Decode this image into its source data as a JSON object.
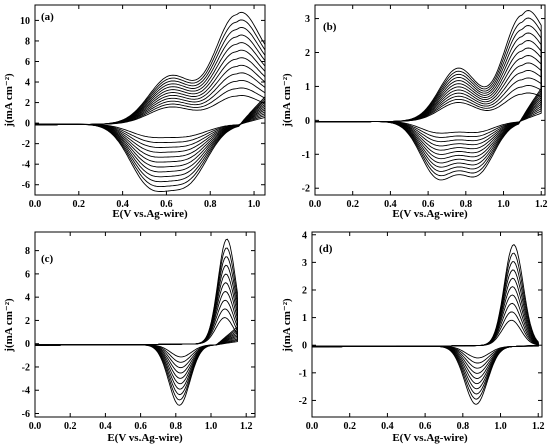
{
  "chart_data": [
    {
      "type": "line",
      "panel_label": "(a)",
      "xlabel": "E(V vs.Ag-wire)",
      "ylabel": "j(mA cm⁻²)",
      "xlim": [
        0.0,
        1.05
      ],
      "ylim": [
        -7,
        11.5
      ],
      "xticks": [
        "0.0",
        "0.2",
        "0.4",
        "0.6",
        "0.8",
        "1.0"
      ],
      "xtick_values": [
        0.0,
        0.2,
        0.4,
        0.6,
        0.8,
        1.0
      ],
      "yticks": [
        "-6",
        "-4",
        "-2",
        "0",
        "2",
        "4",
        "6",
        "8",
        "10"
      ],
      "ytick_values": [
        -6,
        -4,
        -2,
        0,
        2,
        4,
        6,
        8,
        10
      ],
      "cycle_count": 12,
      "anodic_peaks": [
        {
          "E": 0.92,
          "j": 10.5
        },
        {
          "E": 0.62,
          "j": 4.6
        }
      ],
      "cathodic_peaks": [
        {
          "E": 0.52,
          "j": -5.5
        },
        {
          "E": 0.7,
          "j": -5.2
        }
      ],
      "x_start": 0.0,
      "x_switch": 1.05
    },
    {
      "type": "line",
      "panel_label": "(b)",
      "xlabel": "E(V vs.Ag-wire)",
      "ylabel": "j(mA cm⁻²)",
      "xlim": [
        0.0,
        1.22
      ],
      "ylim": [
        -2.2,
        3.4
      ],
      "xticks": [
        "0.0",
        "0.2",
        "0.4",
        "0.6",
        "0.8",
        "1.0",
        "1.2"
      ],
      "xtick_values": [
        0.0,
        0.2,
        0.4,
        0.6,
        0.8,
        1.0,
        1.2
      ],
      "yticks": [
        "-2",
        "-1",
        "0",
        "1",
        "2",
        "3"
      ],
      "ytick_values": [
        -2,
        -1,
        0,
        1,
        2,
        3
      ],
      "cycle_count": 12,
      "anodic_peaks": [
        {
          "E": 1.1,
          "j": 3.1
        },
        {
          "E": 0.76,
          "j": 1.55
        }
      ],
      "cathodic_peaks": [
        {
          "E": 0.65,
          "j": -1.6
        },
        {
          "E": 0.86,
          "j": -1.5
        }
      ],
      "x_start": 0.0,
      "x_switch": 1.2
    },
    {
      "type": "line",
      "panel_label": "(c)",
      "xlabel": "E(V vs.Ag-wire)",
      "ylabel": "j(mA cm⁻²)",
      "xlim": [
        0.0,
        1.25
      ],
      "ylim": [
        -6.3,
        9.6
      ],
      "xticks": [
        "0.0",
        "0.2",
        "0.4",
        "0.6",
        "0.8",
        "1.0",
        "1.2"
      ],
      "xtick_values": [
        0.0,
        0.2,
        0.4,
        0.6,
        0.8,
        1.0,
        1.2
      ],
      "yticks": [
        "-6",
        "-4",
        "-2",
        "0",
        "2",
        "4",
        "6",
        "8"
      ],
      "ytick_values": [
        -6,
        -4,
        -2,
        0,
        2,
        4,
        6,
        8
      ],
      "cycle_count": 10,
      "anodic_peaks": [
        {
          "E": 1.09,
          "j": 9.0
        }
      ],
      "cathodic_peaks": [
        {
          "E": 0.82,
          "j": -5.2
        }
      ],
      "x_start": 0.0,
      "x_switch": 1.15
    },
    {
      "type": "line",
      "panel_label": "(d)",
      "xlabel": "E(V vs.Ag-wire)",
      "ylabel": "j(mA cm⁻²)",
      "xlim": [
        0.0,
        1.22
      ],
      "ylim": [
        -2.6,
        4.1
      ],
      "xticks": [
        "0.0",
        "0.2",
        "0.4",
        "0.6",
        "0.8",
        "1.0",
        "1.2"
      ],
      "xtick_values": [
        0.0,
        0.2,
        0.4,
        0.6,
        0.8,
        1.0,
        1.2
      ],
      "yticks": [
        "-2",
        "-1",
        "0",
        "1",
        "2",
        "3",
        "4"
      ],
      "ytick_values": [
        -2,
        -1,
        0,
        1,
        2,
        3,
        4
      ],
      "cycle_count": 10,
      "anodic_peaks": [
        {
          "E": 1.07,
          "j": 3.65
        }
      ],
      "cathodic_peaks": [
        {
          "E": 0.87,
          "j": -2.1
        }
      ],
      "x_start": 0.0,
      "x_switch": 1.2
    }
  ]
}
